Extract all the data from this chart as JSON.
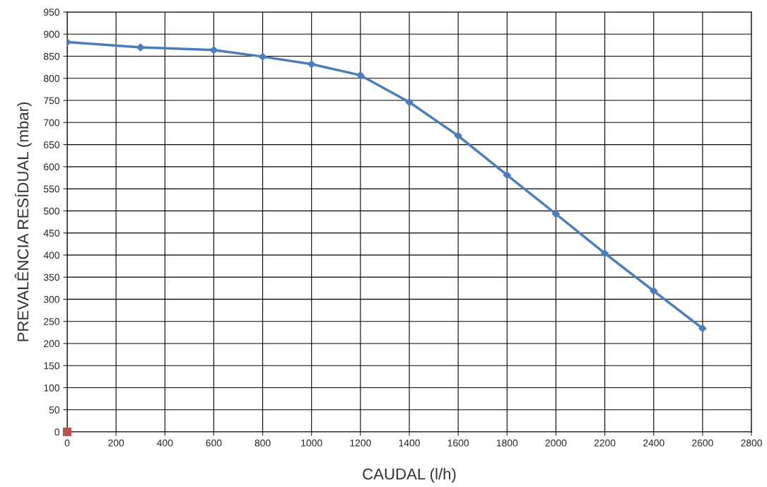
{
  "chart_data": {
    "type": "line",
    "xlabel": "CAUDAL (l/h)",
    "ylabel": "PREVALÊNCIA RESÍDUAL (mbar)",
    "series": [
      {
        "color": "#4a7ebb",
        "marker": "diamond",
        "x": [
          0,
          300,
          600,
          800,
          1000,
          1200,
          1400,
          1600,
          1800,
          2000,
          2200,
          2400,
          2600
        ],
        "values": [
          882,
          870,
          864,
          849,
          832,
          807,
          746,
          670,
          581,
          493,
          404,
          319,
          234
        ]
      },
      {
        "type": "scatter",
        "color": "#c0504d",
        "marker": "square",
        "x": [
          0
        ],
        "values": [
          0
        ]
      }
    ],
    "xlim": [
      0,
      2800
    ],
    "xticks": [
      0,
      200,
      400,
      600,
      800,
      1000,
      1200,
      1400,
      1600,
      1800,
      2000,
      2200,
      2400,
      2600,
      2800
    ],
    "ylim": [
      0,
      950
    ],
    "yticks": [
      0,
      50,
      100,
      150,
      200,
      250,
      300,
      350,
      400,
      450,
      500,
      550,
      600,
      650,
      700,
      750,
      800,
      850,
      900,
      950
    ],
    "grid": true
  }
}
